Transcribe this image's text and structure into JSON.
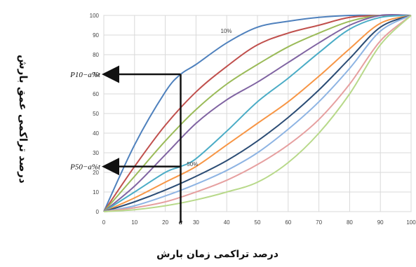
{
  "chart_data": {
    "type": "line",
    "xlabel": "درصد تراکمی زمان بارش",
    "ylabel": "درصد تراکمی عمق بارش",
    "xlim": [
      0,
      100
    ],
    "ylim": [
      0,
      100
    ],
    "x_ticks": [
      "0",
      "10",
      "20",
      "a",
      "30",
      "40",
      "50",
      "60",
      "70",
      "80",
      "90",
      "100"
    ],
    "y_ticks": [
      "0",
      "10",
      "20",
      "30",
      "40",
      "50",
      "60",
      "70",
      "80",
      "90",
      "100"
    ],
    "grid": true,
    "series": [
      {
        "name": "10%",
        "color": "#4f81bd",
        "x": [
          0,
          10,
          20,
          25,
          30,
          40,
          50,
          60,
          70,
          80,
          90,
          100
        ],
        "y": [
          0,
          34,
          61,
          70,
          75,
          86,
          94,
          97,
          99,
          100,
          100,
          100
        ]
      },
      {
        "color": "#c0504d",
        "x": [
          0,
          10,
          20,
          30,
          40,
          50,
          60,
          70,
          80,
          90,
          100
        ],
        "y": [
          0,
          23,
          44,
          61,
          74,
          85,
          91,
          95,
          99,
          100,
          100
        ]
      },
      {
        "color": "#9bbb59",
        "x": [
          0,
          10,
          20,
          30,
          40,
          50,
          60,
          70,
          80,
          90,
          100
        ],
        "y": [
          0,
          18,
          36,
          52,
          65,
          75,
          84,
          91,
          97,
          100,
          100
        ]
      },
      {
        "color": "#8064a2",
        "x": [
          0,
          10,
          20,
          30,
          40,
          50,
          60,
          70,
          80,
          90,
          100
        ],
        "y": [
          0,
          13,
          29,
          45,
          57,
          66,
          76,
          86,
          95,
          100,
          100
        ]
      },
      {
        "name": "50%",
        "color": "#4bacc6",
        "x": [
          0,
          10,
          20,
          25,
          30,
          40,
          50,
          60,
          70,
          80,
          90,
          100
        ],
        "y": [
          0,
          10,
          20,
          23,
          27,
          41,
          56,
          68,
          81,
          93,
          99,
          100
        ]
      },
      {
        "color": "#f79646",
        "x": [
          0,
          10,
          20,
          30,
          40,
          50,
          60,
          70,
          80,
          90,
          100
        ],
        "y": [
          0,
          7,
          15,
          23,
          34,
          45,
          56,
          69,
          83,
          96,
          100
        ]
      },
      {
        "color": "#2c4d75",
        "x": [
          0,
          10,
          20,
          30,
          40,
          50,
          60,
          70,
          80,
          90,
          100
        ],
        "y": [
          0,
          5,
          11,
          18,
          26,
          36,
          48,
          62,
          78,
          94,
          100
        ]
      },
      {
        "color": "#8eb4e3",
        "x": [
          0,
          10,
          20,
          30,
          40,
          50,
          60,
          70,
          80,
          90,
          100
        ],
        "y": [
          0,
          3,
          8,
          14,
          21,
          30,
          42,
          56,
          73,
          92,
          100
        ]
      },
      {
        "color": "#e6a0a0",
        "x": [
          0,
          10,
          20,
          30,
          40,
          50,
          60,
          70,
          80,
          90,
          100
        ],
        "y": [
          0,
          2,
          5,
          10,
          16,
          24,
          34,
          47,
          65,
          87,
          100
        ]
      },
      {
        "color": "#b8d98a",
        "x": [
          0,
          10,
          20,
          30,
          40,
          50,
          60,
          70,
          80,
          90,
          100
        ],
        "y": [
          0,
          1,
          3,
          6,
          10,
          15,
          25,
          40,
          60,
          85,
          100
        ]
      }
    ],
    "annotations": [
      {
        "text": "P10−a%t",
        "x": 25,
        "y": 70
      },
      {
        "text": "P50−a%t",
        "x": 25,
        "y": 23
      }
    ]
  }
}
